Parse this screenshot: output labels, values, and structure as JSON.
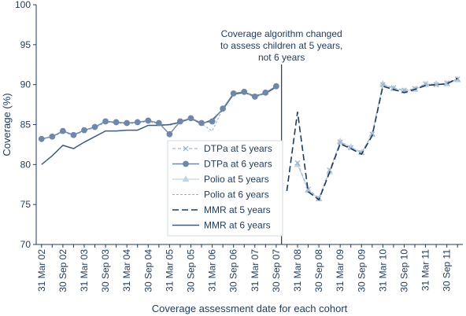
{
  "chart_data": {
    "type": "line",
    "xlabel": "Coverage assessment date for each cohort",
    "ylabel": "Coverage (%)",
    "ylim": [
      70,
      100
    ],
    "yticks": [
      70,
      75,
      80,
      85,
      90,
      95,
      100
    ],
    "grid": false,
    "legend_position": "bottom-left",
    "annotation": {
      "lines": [
        "Coverage algorithm changed",
        "to assess children at 5 years,",
        "not 6 years"
      ],
      "at": "31 Dec 07"
    },
    "x": [
      "31 Mar 02",
      "30 Jun 02",
      "30 Sep 02",
      "31 Dec 02",
      "31 Mar 03",
      "30 Jun 03",
      "30 Sep 03",
      "31 Dec 03",
      "31 Mar 04",
      "30 Jun 04",
      "30 Sep 04",
      "31 Dec 04",
      "31 Mar 05",
      "30 Jun 05",
      "30 Sep 05",
      "31 Dec 05",
      "31 Mar 06",
      "30 Jun 06",
      "30 Sep 06",
      "31 Dec 06",
      "31 Mar 07",
      "30 Jun 07",
      "30 Sep 07",
      "31 Dec 07",
      "31 Mar 08",
      "30 Jun 08",
      "30 Sep 08",
      "31 Dec 08",
      "31 Mar 09",
      "30 Jun 09",
      "30 Sep 09",
      "31 Dec 09",
      "31 Mar 10",
      "30 Jun 10",
      "30 Sep 10",
      "31 Dec 10",
      "31 Mar 11",
      "30 Jun 11",
      "30 Sep 11",
      "31 Dec 11"
    ],
    "tick_labels": [
      "31 Mar 02",
      "30 Sep 02",
      "31 Mar 03",
      "30 Sep 03",
      "31 Mar 04",
      "30 Sep 04",
      "31 Mar 05",
      "30 Sep 05",
      "31 Mar 06",
      "30 Sep 06",
      "31 Mar 07",
      "30 Sep 07",
      "31 Mar 08",
      "30 Sep 08",
      "31 Mar 09",
      "30 Sep 09",
      "31 Mar 10",
      "30 Sep 10",
      "31 Mar 11",
      "30 Sep 11"
    ],
    "series": [
      {
        "name": "DTPa at 5 years",
        "color": "#9fb6cf",
        "dash": "4,3",
        "width": 1.2,
        "marker": "x",
        "values": [
          null,
          null,
          null,
          null,
          null,
          null,
          null,
          null,
          null,
          null,
          null,
          null,
          null,
          null,
          null,
          null,
          null,
          null,
          null,
          null,
          null,
          null,
          null,
          null,
          80.2,
          76.9,
          75.8,
          79.3,
          82.8,
          82.1,
          81.5,
          83.8,
          90.0,
          89.6,
          89.3,
          89.5,
          90.1,
          90.0,
          90.2,
          90.7
        ]
      },
      {
        "name": "DTPa at 6 years",
        "color": "#6f87a8",
        "dash": "",
        "width": 1.4,
        "marker": "circle",
        "values": [
          83.2,
          83.5,
          84.2,
          83.7,
          84.3,
          84.7,
          85.4,
          85.3,
          85.2,
          85.3,
          85.5,
          85.2,
          83.8,
          85.4,
          85.8,
          85.2,
          85.4,
          87.0,
          88.9,
          89.1,
          88.5,
          89.0,
          89.8,
          null,
          null,
          null,
          null,
          null,
          null,
          null,
          null,
          null,
          null,
          null,
          null,
          null,
          null,
          null,
          null,
          null
        ]
      },
      {
        "name": "Polio at 5 years",
        "color": "#c3d3e3",
        "dash": "",
        "width": 1.2,
        "marker": "triangle",
        "values": [
          null,
          null,
          null,
          null,
          null,
          null,
          null,
          null,
          null,
          null,
          null,
          null,
          null,
          null,
          null,
          null,
          null,
          null,
          null,
          null,
          null,
          null,
          null,
          null,
          80.0,
          76.8,
          75.7,
          79.1,
          82.9,
          82.2,
          81.5,
          83.8,
          90.1,
          89.5,
          89.2,
          89.4,
          90.0,
          90.1,
          90.1,
          90.6
        ]
      },
      {
        "name": "Polio at 6 years",
        "color": "#93add0",
        "dash": "3,2",
        "width": 1.0,
        "marker": "none",
        "values": [
          83.3,
          83.4,
          84.1,
          83.6,
          84.2,
          84.6,
          85.3,
          85.2,
          85.1,
          85.2,
          85.4,
          85.1,
          84.9,
          85.3,
          85.7,
          85.1,
          84.2,
          87.0,
          88.8,
          89.0,
          88.4,
          88.9,
          89.7,
          null,
          null,
          null,
          null,
          null,
          null,
          null,
          null,
          null,
          null,
          null,
          null,
          null,
          null,
          null,
          null,
          null
        ]
      },
      {
        "name": "MMR at 5 years",
        "color": "#1f3a5a",
        "dash": "8,4",
        "width": 1.6,
        "marker": "none",
        "values": [
          null,
          null,
          null,
          null,
          null,
          null,
          null,
          null,
          null,
          null,
          null,
          null,
          null,
          null,
          null,
          null,
          null,
          null,
          null,
          null,
          null,
          null,
          null,
          76.7,
          86.6,
          76.6,
          75.6,
          79.0,
          82.6,
          82.0,
          81.3,
          83.6,
          89.8,
          89.4,
          89.0,
          89.4,
          89.9,
          90.0,
          90.1,
          90.8
        ]
      },
      {
        "name": "MMR at 6 years",
        "color": "#3f5a80",
        "dash": "",
        "width": 1.5,
        "marker": "none",
        "values": [
          80.0,
          81.1,
          82.4,
          82.0,
          82.8,
          83.5,
          84.2,
          84.2,
          84.3,
          84.3,
          84.9,
          84.9,
          85.0,
          85.3,
          85.8,
          85.1,
          85.6,
          86.9,
          88.8,
          89.0,
          88.6,
          88.9,
          89.7,
          null,
          null,
          null,
          null,
          null,
          null,
          null,
          null,
          null,
          null,
          null,
          null,
          null,
          null,
          null,
          null,
          null
        ]
      }
    ]
  }
}
